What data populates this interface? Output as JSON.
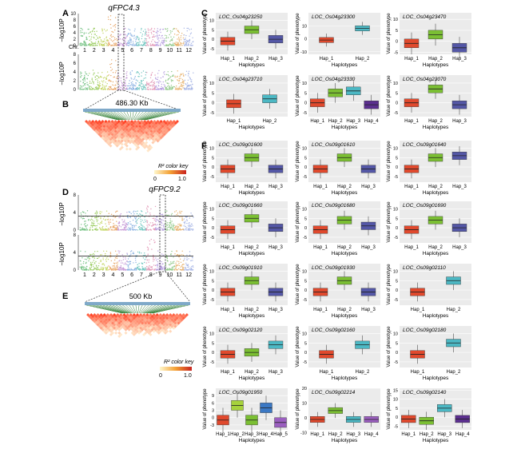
{
  "figure": {
    "panel_letters": {
      "A": "A",
      "B": "B",
      "C": "C",
      "D": "D",
      "E": "E",
      "F": "F"
    },
    "manhattan_top": {
      "title": "qFPC4.3",
      "ylabel": "−log10P",
      "chr_label": "Chr.",
      "chromosomes": [
        "1",
        "2",
        "3",
        "4",
        "5",
        "6",
        "7",
        "8",
        "9",
        "10",
        "11",
        "12"
      ],
      "yticks_a": [
        "0",
        "2",
        "4",
        "6",
        "8",
        "10"
      ],
      "yticks_b": [
        "0",
        "2",
        "4",
        "6",
        "8"
      ]
    },
    "ld_top": {
      "size_label": "486.30 Kb",
      "key_title": "R² color key",
      "key_min": "0",
      "key_max": "1.0"
    },
    "manhattan_bottom": {
      "title": "qFPC9.2",
      "ylabel": "−log10P",
      "yticks_a": [
        "0",
        "4",
        "8"
      ],
      "yticks_b": [
        "0",
        "4",
        "8"
      ],
      "chromosomes": [
        "1",
        "2",
        "3",
        "4",
        "5",
        "6",
        "7",
        "8",
        "9",
        "10",
        "11",
        "12"
      ]
    },
    "ld_bottom": {
      "size_label": "500 Kb",
      "key_title": "R² color key",
      "key_min": "0",
      "key_max": "1.0"
    },
    "boxplot_ylabel": "Value of phenotype",
    "boxplot_xlabel": "Haplotypes",
    "hap_colors": {
      "Hap_1": "#e0492d",
      "Hap_2": "#7bbf33",
      "Hap_3": "#5457a6",
      "Hap_4": "#3b78c4",
      "Hap_5": "#9b5fc0"
    }
  },
  "chart_data": [
    {
      "type": "box",
      "gene": "LOC_Os04g23250",
      "categories": [
        "Hap_1",
        "Hap_2",
        "Hap_3"
      ],
      "colors": [
        "#e0492d",
        "#7bbf33",
        "#5457a6"
      ],
      "medians": [
        -1,
        5,
        0
      ],
      "ylim": [
        -8,
        14
      ],
      "yticks": [
        "-5",
        "0",
        "5",
        "10"
      ]
    },
    {
      "type": "box",
      "gene": "LOC_Os04g23300",
      "categories": [
        "Hap_1",
        "Hap_2"
      ],
      "colors": [
        "#e0492d",
        "#4cb8c4"
      ],
      "medians": [
        -1,
        8
      ],
      "ylim": [
        -12,
        20
      ],
      "yticks": [
        "-10",
        "0",
        "10"
      ]
    },
    {
      "type": "box",
      "gene": "LOC_Os04g23470",
      "categories": [
        "Hap_1",
        "Hap_2",
        "Hap_3"
      ],
      "colors": [
        "#e0492d",
        "#7bbf33",
        "#5457a6"
      ],
      "medians": [
        -1,
        3,
        -3
      ],
      "ylim": [
        -6,
        13
      ],
      "yticks": [
        "-5",
        "0",
        "5",
        "10"
      ]
    },
    {
      "type": "box",
      "gene": "LOC_Os04g23710",
      "categories": [
        "Hap_1",
        "Hap_2"
      ],
      "colors": [
        "#e0492d",
        "#4cb8c4"
      ],
      "medians": [
        -0.5,
        2
      ],
      "ylim": [
        -7,
        14
      ],
      "yticks": [
        "-5",
        "0",
        "5",
        "10"
      ]
    },
    {
      "type": "box",
      "gene": "LOC_Os04g23330",
      "categories": [
        "Hap_1",
        "Hap_2",
        "Hap_3",
        "Hap_4"
      ],
      "colors": [
        "#e0492d",
        "#7bbf33",
        "#4cb8c4",
        "#5b2f8f"
      ],
      "medians": [
        0,
        5,
        6,
        -1
      ],
      "ylim": [
        -7,
        14
      ],
      "yticks": [
        "-5",
        "0",
        "5",
        "10"
      ]
    },
    {
      "type": "box",
      "gene": "LOC_Os04g23070",
      "categories": [
        "Hap_1",
        "Hap_2",
        "Hap_3"
      ],
      "colors": [
        "#e0492d",
        "#7bbf33",
        "#5457a6"
      ],
      "medians": [
        0,
        7,
        -1
      ],
      "ylim": [
        -7,
        14
      ],
      "yticks": [
        "-5",
        "0",
        "5",
        "10"
      ]
    },
    {
      "type": "box",
      "gene": "LOC_Os09g01600",
      "categories": [
        "Hap_1",
        "Hap_2",
        "Hap_3"
      ],
      "colors": [
        "#e0492d",
        "#7bbf33",
        "#5457a6"
      ],
      "medians": [
        -1,
        5,
        -1
      ],
      "ylim": [
        -8,
        14
      ],
      "yticks": [
        "-5",
        "0",
        "5",
        "10"
      ]
    },
    {
      "type": "box",
      "gene": "LOC_Os09g01610",
      "categories": [
        "Hap_1",
        "Hap_2",
        "Hap_3"
      ],
      "colors": [
        "#e0492d",
        "#7bbf33",
        "#5457a6"
      ],
      "medians": [
        -1,
        5,
        -1
      ],
      "ylim": [
        -8,
        14
      ],
      "yticks": [
        "-5",
        "0",
        "5",
        "10"
      ]
    },
    {
      "type": "box",
      "gene": "LOC_Os09g01640",
      "categories": [
        "Hap_1",
        "Hap_2",
        "Hap_3"
      ],
      "colors": [
        "#e0492d",
        "#7bbf33",
        "#5457a6"
      ],
      "medians": [
        -1,
        5,
        6
      ],
      "ylim": [
        -8,
        14
      ],
      "yticks": [
        "-5",
        "0",
        "5",
        "10"
      ]
    },
    {
      "type": "box",
      "gene": "LOC_Os09g01660",
      "categories": [
        "Hap_1",
        "Hap_2",
        "Hap_3"
      ],
      "colors": [
        "#e0492d",
        "#7bbf33",
        "#5457a6"
      ],
      "medians": [
        -1,
        5,
        0
      ],
      "ylim": [
        -8,
        14
      ],
      "yticks": [
        "-5",
        "0",
        "5",
        "10"
      ]
    },
    {
      "type": "box",
      "gene": "LOC_Os09g01680",
      "categories": [
        "Hap_1",
        "Hap_2",
        "Hap_3"
      ],
      "colors": [
        "#e0492d",
        "#7bbf33",
        "#5457a6"
      ],
      "medians": [
        -1,
        4,
        1
      ],
      "ylim": [
        -8,
        14
      ],
      "yticks": [
        "-5",
        "0",
        "5",
        "10"
      ]
    },
    {
      "type": "box",
      "gene": "LOC_Os09g01690",
      "categories": [
        "Hap_1",
        "Hap_2",
        "Hap_3"
      ],
      "colors": [
        "#e0492d",
        "#7bbf33",
        "#5457a6"
      ],
      "medians": [
        -1,
        4,
        0
      ],
      "ylim": [
        -8,
        14
      ],
      "yticks": [
        "-5",
        "0",
        "5",
        "10"
      ]
    },
    {
      "type": "box",
      "gene": "LOC_Os09g01910",
      "categories": [
        "Hap_1",
        "Hap_2",
        "Hap_3"
      ],
      "colors": [
        "#e0492d",
        "#7bbf33",
        "#5457a6"
      ],
      "medians": [
        -1,
        5,
        -1
      ],
      "ylim": [
        -8,
        14
      ],
      "yticks": [
        "-5",
        "0",
        "5",
        "10"
      ]
    },
    {
      "type": "box",
      "gene": "LOC_Os09g01930",
      "categories": [
        "Hap_1",
        "Hap_2",
        "Hap_3"
      ],
      "colors": [
        "#e0492d",
        "#7bbf33",
        "#5457a6"
      ],
      "medians": [
        -1,
        5,
        -1
      ],
      "ylim": [
        -8,
        14
      ],
      "yticks": [
        "-5",
        "0",
        "5",
        "10"
      ]
    },
    {
      "type": "box",
      "gene": "LOC_Os09g02110",
      "categories": [
        "Hap_1",
        "Hap_2"
      ],
      "colors": [
        "#e0492d",
        "#4cb8c4"
      ],
      "medians": [
        -1,
        5
      ],
      "ylim": [
        -8,
        14
      ],
      "yticks": [
        "-5",
        "0",
        "5",
        "10"
      ]
    },
    {
      "type": "box",
      "gene": "LOC_Os09g02120",
      "categories": [
        "Hap_1",
        "Hap_2",
        "Hap_3"
      ],
      "colors": [
        "#e0492d",
        "#7bbf33",
        "#4cb8c4"
      ],
      "medians": [
        -1,
        0,
        4
      ],
      "ylim": [
        -8,
        14
      ],
      "yticks": [
        "-5",
        "0",
        "5",
        "10"
      ]
    },
    {
      "type": "box",
      "gene": "LOC_Os09g02160",
      "categories": [
        "Hap_1",
        "Hap_2"
      ],
      "colors": [
        "#e0492d",
        "#4cb8c4"
      ],
      "medians": [
        -1,
        4
      ],
      "ylim": [
        -8,
        14
      ],
      "yticks": [
        "-5",
        "0",
        "5",
        "10"
      ]
    },
    {
      "type": "box",
      "gene": "LOC_Os09g02180",
      "categories": [
        "Hap_1",
        "Hap_2"
      ],
      "colors": [
        "#e0492d",
        "#4cb8c4"
      ],
      "medians": [
        -1,
        5
      ],
      "ylim": [
        -8,
        14
      ],
      "yticks": [
        "-5",
        "0",
        "5",
        "10"
      ]
    },
    {
      "type": "box",
      "gene": "LOC_Os09g01950",
      "categories": [
        "Hap_1",
        "Hap_2",
        "Hap_3",
        "Hap_4",
        "Hap_5"
      ],
      "colors": [
        "#e0492d",
        "#a6d23c",
        "#7bbf33",
        "#3b78c4",
        "#9b5fc0"
      ],
      "medians": [
        -1,
        5,
        -1,
        4,
        -2
      ],
      "ylim": [
        -5,
        12
      ],
      "yticks": [
        "-3",
        "0",
        "3",
        "6",
        "9"
      ]
    },
    {
      "type": "box",
      "gene": "LOC_Os09g02214",
      "categories": [
        "Hap_1",
        "Hap_2",
        "Hap_3",
        "Hap_4"
      ],
      "colors": [
        "#e0492d",
        "#7bbf33",
        "#4cb8c4",
        "#9b5fc0"
      ],
      "medians": [
        -1,
        5,
        -1,
        -1
      ],
      "ylim": [
        -8,
        20
      ],
      "yticks": [
        "-10",
        "0",
        "10",
        "20"
      ]
    },
    {
      "type": "box",
      "gene": "LOC_Os09g02140",
      "categories": [
        "Hap_1",
        "Hap_2",
        "Hap_3",
        "Hap_4"
      ],
      "colors": [
        "#e0492d",
        "#7bbf33",
        "#4cb8c4",
        "#5b2f8f"
      ],
      "medians": [
        -1,
        -2,
        5,
        -1
      ],
      "ylim": [
        -7,
        16
      ],
      "yticks": [
        "-5",
        "0",
        "5",
        "10",
        "15"
      ]
    }
  ]
}
